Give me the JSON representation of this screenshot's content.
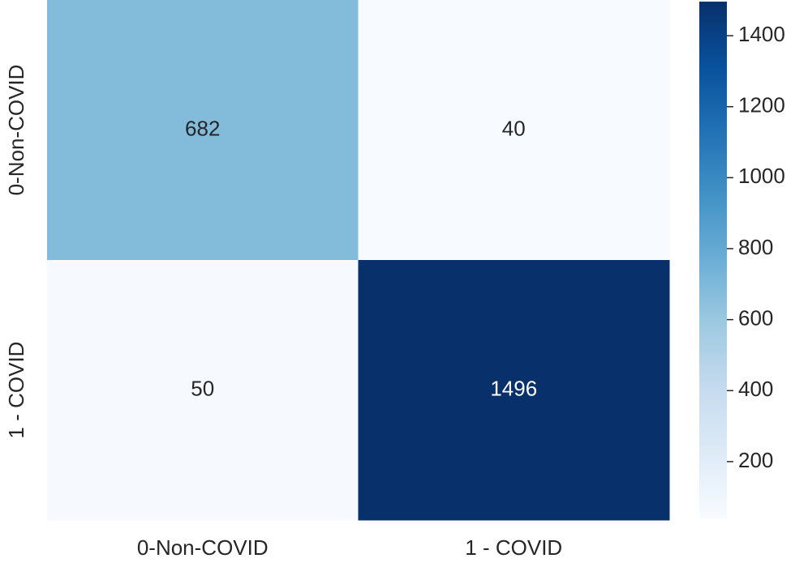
{
  "chart_data": {
    "type": "heatmap",
    "x_categories": [
      "0-Non-COVID",
      "1 - COVID"
    ],
    "y_categories": [
      "0-Non-COVID",
      "1 - COVID"
    ],
    "values": [
      [
        682,
        40
      ],
      [
        50,
        1496
      ]
    ],
    "colormap": "Blues",
    "clim": [
      40,
      1496
    ],
    "colorbar_ticks": [
      200,
      400,
      600,
      800,
      1000,
      1200,
      1400
    ]
  }
}
